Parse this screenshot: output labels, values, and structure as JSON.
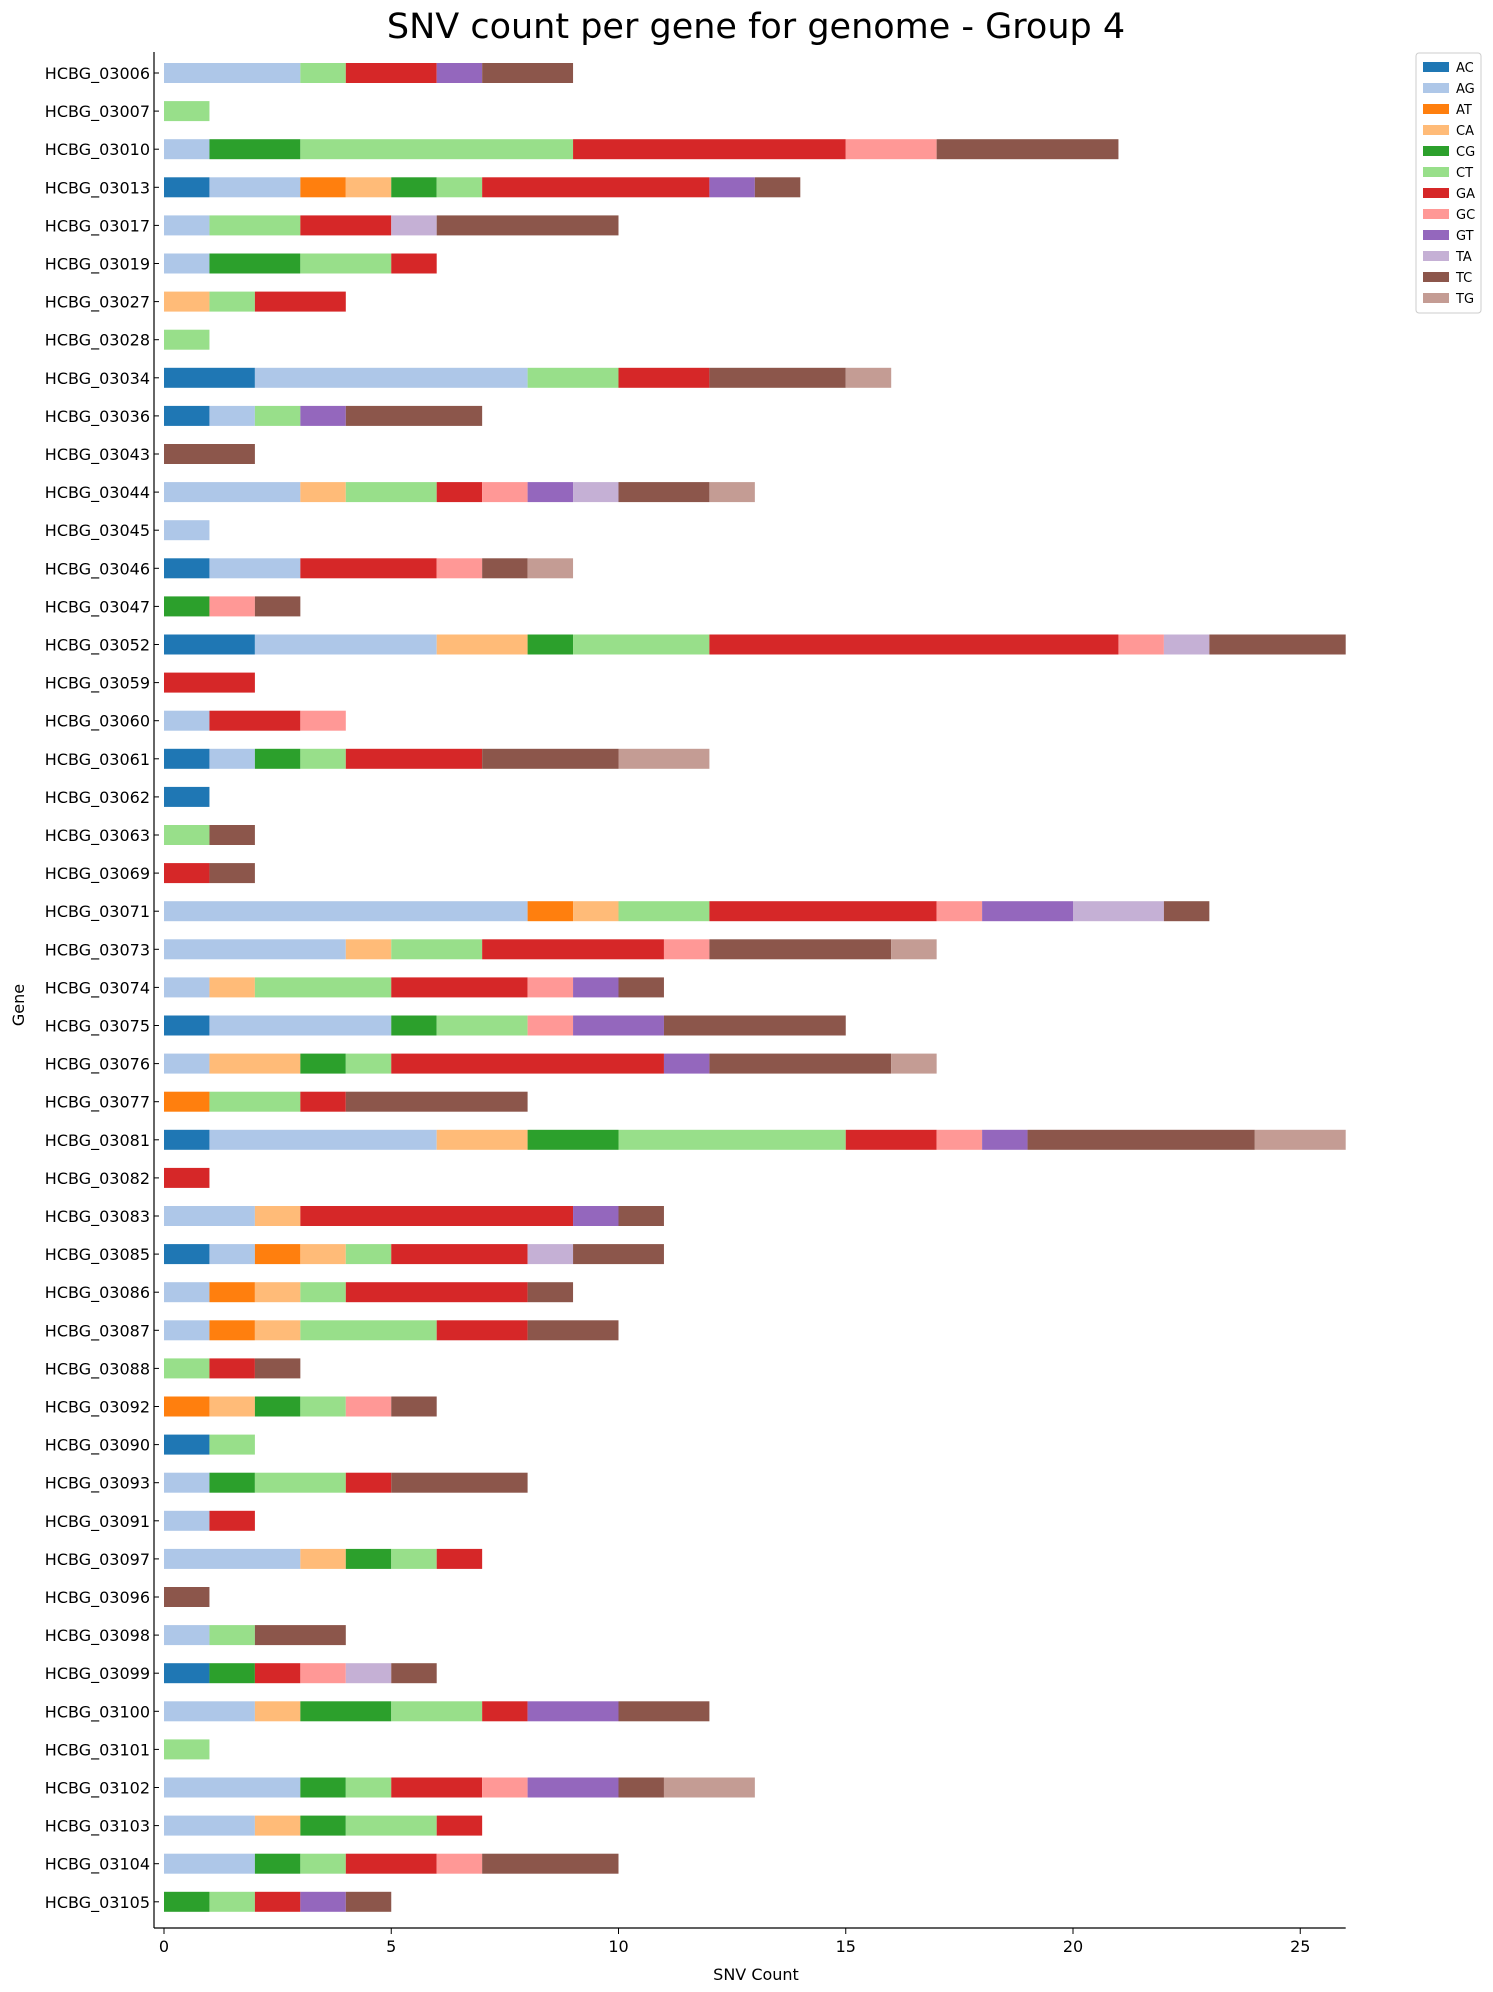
{
  "chart_data": {
    "type": "bar",
    "orientation": "horizontal",
    "stacked": true,
    "title": "SNV count per gene for genome - Group 4",
    "xlabel": "SNV Count",
    "ylabel": "Gene",
    "xlim": [
      0,
      26
    ],
    "xticks": [
      0,
      5,
      10,
      15,
      20,
      25
    ],
    "grid": false,
    "legend_position": "top-right",
    "series_names": [
      "AC",
      "AG",
      "AT",
      "CA",
      "CG",
      "CT",
      "GA",
      "GC",
      "GT",
      "TA",
      "TC",
      "TG"
    ],
    "series_colors": [
      "#1f77b4",
      "#aec7e8",
      "#ff7f0e",
      "#ffbb78",
      "#2ca02c",
      "#98df8a",
      "#d62728",
      "#ff9896",
      "#9467bd",
      "#c5b0d5",
      "#8c564b",
      "#c49c94"
    ],
    "genes": [
      {
        "name": "HCBG_03006",
        "counts": [
          0,
          3,
          0,
          0,
          0,
          1,
          2,
          0,
          1,
          0,
          2,
          0
        ]
      },
      {
        "name": "HCBG_03007",
        "counts": [
          0,
          0,
          0,
          0,
          0,
          1,
          0,
          0,
          0,
          0,
          0,
          0
        ]
      },
      {
        "name": "HCBG_03010",
        "counts": [
          0,
          1,
          0,
          0,
          2,
          6,
          6,
          2,
          0,
          0,
          4,
          0
        ]
      },
      {
        "name": "HCBG_03013",
        "counts": [
          1,
          2,
          1,
          1,
          1,
          1,
          5,
          0,
          1,
          0,
          1,
          0
        ]
      },
      {
        "name": "HCBG_03017",
        "counts": [
          0,
          1,
          0,
          0,
          0,
          2,
          2,
          0,
          0,
          1,
          4,
          0
        ]
      },
      {
        "name": "HCBG_03019",
        "counts": [
          0,
          1,
          0,
          0,
          2,
          2,
          1,
          0,
          0,
          0,
          0,
          0
        ]
      },
      {
        "name": "HCBG_03027",
        "counts": [
          0,
          0,
          0,
          1,
          0,
          1,
          2,
          0,
          0,
          0,
          0,
          0
        ]
      },
      {
        "name": "HCBG_03028",
        "counts": [
          0,
          0,
          0,
          0,
          0,
          1,
          0,
          0,
          0,
          0,
          0,
          0
        ]
      },
      {
        "name": "HCBG_03034",
        "counts": [
          2,
          6,
          0,
          0,
          0,
          2,
          2,
          0,
          0,
          0,
          3,
          1
        ]
      },
      {
        "name": "HCBG_03036",
        "counts": [
          1,
          1,
          0,
          0,
          0,
          1,
          0,
          0,
          1,
          0,
          3,
          0
        ]
      },
      {
        "name": "HCBG_03043",
        "counts": [
          0,
          0,
          0,
          0,
          0,
          0,
          0,
          0,
          0,
          0,
          2,
          0
        ]
      },
      {
        "name": "HCBG_03044",
        "counts": [
          0,
          3,
          0,
          1,
          0,
          2,
          1,
          1,
          1,
          1,
          2,
          1
        ]
      },
      {
        "name": "HCBG_03045",
        "counts": [
          0,
          1,
          0,
          0,
          0,
          0,
          0,
          0,
          0,
          0,
          0,
          0
        ]
      },
      {
        "name": "HCBG_03046",
        "counts": [
          1,
          2,
          0,
          0,
          0,
          0,
          3,
          1,
          0,
          0,
          1,
          1
        ]
      },
      {
        "name": "HCBG_03047",
        "counts": [
          0,
          0,
          0,
          0,
          1,
          0,
          0,
          1,
          0,
          0,
          1,
          0
        ]
      },
      {
        "name": "HCBG_03052",
        "counts": [
          2,
          4,
          0,
          2,
          1,
          3,
          9,
          1,
          0,
          1,
          3,
          0
        ]
      },
      {
        "name": "HCBG_03059",
        "counts": [
          0,
          0,
          0,
          0,
          0,
          0,
          2,
          0,
          0,
          0,
          0,
          0
        ]
      },
      {
        "name": "HCBG_03060",
        "counts": [
          0,
          1,
          0,
          0,
          0,
          0,
          2,
          1,
          0,
          0,
          0,
          0
        ]
      },
      {
        "name": "HCBG_03061",
        "counts": [
          1,
          1,
          0,
          0,
          1,
          1,
          3,
          0,
          0,
          0,
          3,
          2
        ]
      },
      {
        "name": "HCBG_03062",
        "counts": [
          1,
          0,
          0,
          0,
          0,
          0,
          0,
          0,
          0,
          0,
          0,
          0
        ]
      },
      {
        "name": "HCBG_03063",
        "counts": [
          0,
          0,
          0,
          0,
          0,
          1,
          0,
          0,
          0,
          0,
          1,
          0
        ]
      },
      {
        "name": "HCBG_03069",
        "counts": [
          0,
          0,
          0,
          0,
          0,
          0,
          1,
          0,
          0,
          0,
          1,
          0
        ]
      },
      {
        "name": "HCBG_03071",
        "counts": [
          0,
          8,
          1,
          1,
          0,
          2,
          5,
          1,
          2,
          2,
          1,
          0
        ]
      },
      {
        "name": "HCBG_03073",
        "counts": [
          0,
          4,
          0,
          1,
          0,
          2,
          4,
          1,
          0,
          0,
          4,
          1
        ]
      },
      {
        "name": "HCBG_03074",
        "counts": [
          0,
          1,
          0,
          1,
          0,
          3,
          3,
          1,
          1,
          0,
          1,
          0
        ]
      },
      {
        "name": "HCBG_03075",
        "counts": [
          1,
          4,
          0,
          0,
          1,
          2,
          0,
          1,
          2,
          0,
          4,
          0
        ]
      },
      {
        "name": "HCBG_03076",
        "counts": [
          0,
          1,
          0,
          2,
          1,
          1,
          6,
          0,
          1,
          0,
          4,
          1
        ]
      },
      {
        "name": "HCBG_03077",
        "counts": [
          0,
          0,
          1,
          0,
          0,
          2,
          1,
          0,
          0,
          0,
          4,
          0
        ]
      },
      {
        "name": "HCBG_03081",
        "counts": [
          1,
          5,
          0,
          2,
          2,
          5,
          2,
          1,
          1,
          0,
          5,
          2
        ]
      },
      {
        "name": "HCBG_03082",
        "counts": [
          0,
          0,
          0,
          0,
          0,
          0,
          1,
          0,
          0,
          0,
          0,
          0
        ]
      },
      {
        "name": "HCBG_03083",
        "counts": [
          0,
          2,
          0,
          1,
          0,
          0,
          6,
          0,
          1,
          0,
          1,
          0
        ]
      },
      {
        "name": "HCBG_03085",
        "counts": [
          1,
          1,
          1,
          1,
          0,
          1,
          3,
          0,
          0,
          1,
          2,
          0
        ]
      },
      {
        "name": "HCBG_03086",
        "counts": [
          0,
          1,
          1,
          1,
          0,
          1,
          4,
          0,
          0,
          0,
          1,
          0
        ]
      },
      {
        "name": "HCBG_03087",
        "counts": [
          0,
          1,
          1,
          1,
          0,
          3,
          2,
          0,
          0,
          0,
          2,
          0
        ]
      },
      {
        "name": "HCBG_03088",
        "counts": [
          0,
          0,
          0,
          0,
          0,
          1,
          1,
          0,
          0,
          0,
          1,
          0
        ]
      },
      {
        "name": "HCBG_03092",
        "counts": [
          0,
          0,
          1,
          1,
          1,
          1,
          0,
          1,
          0,
          0,
          1,
          0
        ]
      },
      {
        "name": "HCBG_03090",
        "counts": [
          1,
          0,
          0,
          0,
          0,
          1,
          0,
          0,
          0,
          0,
          0,
          0
        ]
      },
      {
        "name": "HCBG_03093",
        "counts": [
          0,
          1,
          0,
          0,
          1,
          2,
          1,
          0,
          0,
          0,
          3,
          0
        ]
      },
      {
        "name": "HCBG_03091",
        "counts": [
          0,
          1,
          0,
          0,
          0,
          0,
          1,
          0,
          0,
          0,
          0,
          0
        ]
      },
      {
        "name": "HCBG_03097",
        "counts": [
          0,
          3,
          0,
          1,
          1,
          1,
          1,
          0,
          0,
          0,
          0,
          0
        ]
      },
      {
        "name": "HCBG_03096",
        "counts": [
          0,
          0,
          0,
          0,
          0,
          0,
          0,
          0,
          0,
          0,
          1,
          0
        ]
      },
      {
        "name": "HCBG_03098",
        "counts": [
          0,
          1,
          0,
          0,
          0,
          1,
          0,
          0,
          0,
          0,
          2,
          0
        ]
      },
      {
        "name": "HCBG_03099",
        "counts": [
          1,
          0,
          0,
          0,
          1,
          0,
          1,
          1,
          0,
          1,
          1,
          0
        ]
      },
      {
        "name": "HCBG_03100",
        "counts": [
          0,
          2,
          0,
          1,
          2,
          2,
          1,
          0,
          2,
          0,
          2,
          0
        ]
      },
      {
        "name": "HCBG_03101",
        "counts": [
          0,
          0,
          0,
          0,
          0,
          1,
          0,
          0,
          0,
          0,
          0,
          0
        ]
      },
      {
        "name": "HCBG_03102",
        "counts": [
          0,
          3,
          0,
          0,
          1,
          1,
          2,
          1,
          2,
          0,
          1,
          2
        ]
      },
      {
        "name": "HCBG_03103",
        "counts": [
          0,
          2,
          0,
          1,
          1,
          2,
          1,
          0,
          0,
          0,
          0,
          0
        ]
      },
      {
        "name": "HCBG_03104",
        "counts": [
          0,
          2,
          0,
          0,
          1,
          1,
          2,
          1,
          0,
          0,
          3,
          0
        ]
      },
      {
        "name": "HCBG_03105",
        "counts": [
          0,
          0,
          0,
          0,
          1,
          1,
          1,
          0,
          1,
          0,
          1,
          0
        ]
      }
    ]
  }
}
